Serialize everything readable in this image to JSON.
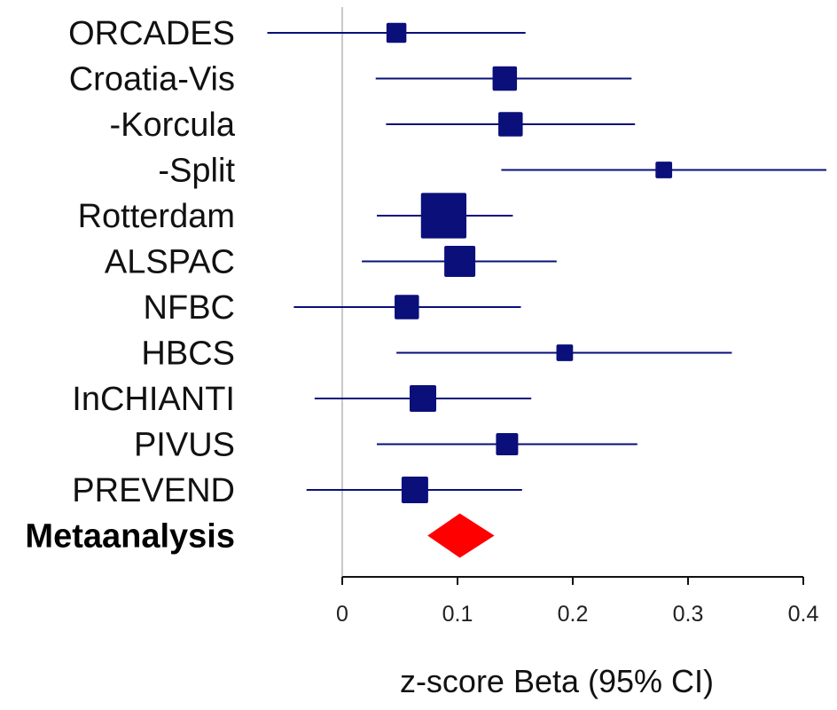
{
  "chart_data": {
    "type": "forest",
    "xlabel": "z-score Beta (95% CI)",
    "xlim": [
      0,
      0.4
    ],
    "xticks": [
      0,
      0.1,
      0.2,
      0.3,
      0.4
    ],
    "xtick_labels": [
      "0",
      "0.1",
      "0.2",
      "0.3",
      "0.4"
    ],
    "reference_line": 0,
    "colors": {
      "study": "#0a0f7a",
      "meta": "#ff0000",
      "reference": "#c8c8c8"
    },
    "studies": [
      {
        "name": "ORCADES",
        "beta": 0.047,
        "lower": -0.065,
        "upper": 0.159,
        "weight": 0.9
      },
      {
        "name": "Croatia-Vis",
        "beta": 0.141,
        "lower": 0.029,
        "upper": 0.251,
        "weight": 1.1
      },
      {
        "name": "-Korcula",
        "beta": 0.146,
        "lower": 0.038,
        "upper": 0.254,
        "weight": 1.1
      },
      {
        "name": "-Split",
        "beta": 0.279,
        "lower": 0.138,
        "upper": 0.42,
        "weight": 0.75
      },
      {
        "name": "Rotterdam",
        "beta": 0.088,
        "lower": 0.03,
        "upper": 0.148,
        "weight": 2.05
      },
      {
        "name": "ALSPAC",
        "beta": 0.102,
        "lower": 0.017,
        "upper": 0.186,
        "weight": 1.4
      },
      {
        "name": "NFBC",
        "beta": 0.056,
        "lower": -0.042,
        "upper": 0.155,
        "weight": 1.1
      },
      {
        "name": "HBCS",
        "beta": 0.193,
        "lower": 0.047,
        "upper": 0.338,
        "weight": 0.75
      },
      {
        "name": "InCHIANTI",
        "beta": 0.07,
        "lower": -0.024,
        "upper": 0.164,
        "weight": 1.2
      },
      {
        "name": "PIVUS",
        "beta": 0.143,
        "lower": 0.03,
        "upper": 0.256,
        "weight": 1.0
      },
      {
        "name": "PREVEND",
        "beta": 0.063,
        "lower": -0.031,
        "upper": 0.156,
        "weight": 1.2
      }
    ],
    "meta": {
      "name": "Metaanalysis",
      "beta": 0.102,
      "lower": 0.074,
      "upper": 0.132
    }
  }
}
